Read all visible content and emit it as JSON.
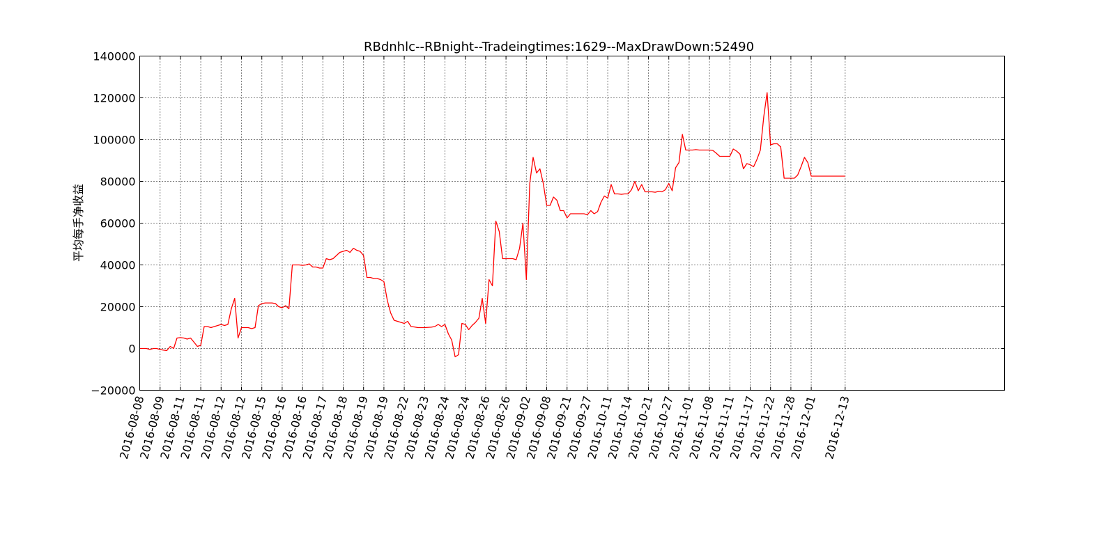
{
  "chart_data": {
    "type": "line",
    "title": "RBdnhlc--RBnight--Tradeingtimes:1629--MaxDrawDown:52490",
    "xlabel": "",
    "ylabel": "平均每手净收益",
    "ylim": [
      -20000,
      140000
    ],
    "yticks": [
      -20000,
      0,
      20000,
      40000,
      60000,
      80000,
      100000,
      120000,
      140000
    ],
    "ytick_labels": [
      "−20000",
      "0",
      "20000",
      "40000",
      "60000",
      "80000",
      "100000",
      "120000",
      "140000"
    ],
    "xlim": [
      0,
      255
    ],
    "xtick_positions": [
      0,
      6,
      12,
      18,
      24,
      30,
      36,
      42,
      48,
      54,
      60,
      66,
      72,
      78,
      84,
      90,
      96,
      102,
      108,
      114,
      120,
      126,
      132,
      138,
      144,
      150,
      156,
      162,
      168,
      174,
      180,
      186,
      192,
      198,
      208
    ],
    "xtick_labels": [
      "2016-08-08",
      "2016-08-09",
      "2016-08-11",
      "2016-08-11",
      "2016-08-12",
      "2016-08-12",
      "2016-08-15",
      "2016-08-16",
      "2016-08-16",
      "2016-08-17",
      "2016-08-18",
      "2016-08-19",
      "2016-08-19",
      "2016-08-22",
      "2016-08-23",
      "2016-08-24",
      "2016-08-24",
      "2016-08-26",
      "2016-08-26",
      "2016-09-02",
      "2016-09-08",
      "2016-09-21",
      "2016-09-27",
      "2016-10-11",
      "2016-10-14",
      "2016-10-21",
      "2016-10-27",
      "2016-11-01",
      "2016-11-08",
      "2016-11-11",
      "2016-11-17",
      "2016-11-22",
      "2016-11-28",
      "2016-12-01",
      "2016-12-13"
    ],
    "grid": true,
    "series": [
      {
        "name": "",
        "color": "#ff0000",
        "points": [
          [
            0,
            0
          ],
          [
            2,
            0
          ],
          [
            3,
            -500
          ],
          [
            4,
            0
          ],
          [
            5,
            0
          ],
          [
            6,
            -500
          ],
          [
            7,
            -800
          ],
          [
            8,
            -1000
          ],
          [
            9,
            1000
          ],
          [
            10,
            0
          ],
          [
            11,
            5000
          ],
          [
            12,
            5200
          ],
          [
            13,
            5000
          ],
          [
            14,
            4500
          ],
          [
            15,
            5000
          ],
          [
            16,
            3000
          ],
          [
            17,
            1000
          ],
          [
            18,
            1500
          ],
          [
            19,
            10500
          ],
          [
            20,
            10500
          ],
          [
            21,
            10000
          ],
          [
            22,
            10500
          ],
          [
            23,
            11000
          ],
          [
            24,
            11500
          ],
          [
            25,
            11000
          ],
          [
            26,
            11500
          ],
          [
            27,
            19000
          ],
          [
            28,
            24000
          ],
          [
            29,
            5000
          ],
          [
            30,
            10000
          ],
          [
            31,
            10000
          ],
          [
            32,
            10000
          ],
          [
            33,
            9500
          ],
          [
            34,
            10000
          ],
          [
            35,
            20500
          ],
          [
            36,
            21500
          ],
          [
            37,
            21800
          ],
          [
            38,
            21800
          ],
          [
            39,
            21800
          ],
          [
            40,
            21500
          ],
          [
            41,
            20000
          ],
          [
            42,
            19500
          ],
          [
            43,
            20500
          ],
          [
            44,
            19000
          ],
          [
            45,
            40000
          ],
          [
            46,
            40000
          ],
          [
            47,
            40000
          ],
          [
            48,
            39800
          ],
          [
            49,
            40000
          ],
          [
            50,
            40500
          ],
          [
            51,
            39000
          ],
          [
            52,
            39000
          ],
          [
            53,
            38500
          ],
          [
            54,
            38500
          ],
          [
            55,
            43000
          ],
          [
            56,
            42500
          ],
          [
            57,
            43000
          ],
          [
            58,
            44500
          ],
          [
            59,
            46000
          ],
          [
            60,
            46500
          ],
          [
            61,
            47000
          ],
          [
            62,
            46000
          ],
          [
            63,
            48000
          ],
          [
            64,
            47000
          ],
          [
            65,
            46500
          ],
          [
            66,
            44500
          ],
          [
            67,
            34000
          ],
          [
            68,
            34000
          ],
          [
            69,
            33500
          ],
          [
            70,
            33500
          ],
          [
            71,
            33000
          ],
          [
            72,
            32000
          ],
          [
            73,
            23000
          ],
          [
            74,
            17000
          ],
          [
            75,
            13500
          ],
          [
            76,
            13000
          ],
          [
            77,
            12500
          ],
          [
            78,
            12000
          ],
          [
            79,
            13000
          ],
          [
            80,
            10500
          ],
          [
            81,
            10300
          ],
          [
            82,
            10000
          ],
          [
            84,
            10000
          ],
          [
            86,
            10200
          ],
          [
            87,
            10500
          ],
          [
            88,
            11500
          ],
          [
            89,
            10500
          ],
          [
            90,
            11500
          ],
          [
            91,
            7000
          ],
          [
            92,
            4000
          ],
          [
            93,
            -4000
          ],
          [
            94,
            -3000
          ],
          [
            95,
            12000
          ],
          [
            96,
            11500
          ],
          [
            97,
            9000
          ],
          [
            98,
            11000
          ],
          [
            99,
            12500
          ],
          [
            100,
            14500
          ],
          [
            101,
            24000
          ],
          [
            102,
            12000
          ],
          [
            103,
            33000
          ],
          [
            104,
            30000
          ],
          [
            105,
            61000
          ],
          [
            106,
            56000
          ],
          [
            107,
            43000
          ],
          [
            108,
            43000
          ],
          [
            109,
            43000
          ],
          [
            110,
            43000
          ],
          [
            111,
            42500
          ],
          [
            112,
            48000
          ],
          [
            113,
            60000
          ],
          [
            114,
            33000
          ],
          [
            115,
            79000
          ],
          [
            116,
            91500
          ],
          [
            117,
            84000
          ],
          [
            118,
            86000
          ],
          [
            119,
            79000
          ],
          [
            120,
            68500
          ],
          [
            121,
            68500
          ],
          [
            122,
            72500
          ],
          [
            123,
            71000
          ],
          [
            124,
            66000
          ],
          [
            125,
            66000
          ],
          [
            126,
            62500
          ],
          [
            127,
            64500
          ],
          [
            130,
            64500
          ],
          [
            131,
            64500
          ],
          [
            132,
            64000
          ],
          [
            133,
            66000
          ],
          [
            134,
            64500
          ],
          [
            135,
            65500
          ],
          [
            136,
            70000
          ],
          [
            137,
            73000
          ],
          [
            138,
            72000
          ],
          [
            139,
            78500
          ],
          [
            140,
            74000
          ],
          [
            141,
            74000
          ],
          [
            142,
            73800
          ],
          [
            143,
            74000
          ],
          [
            144,
            74000
          ],
          [
            145,
            76000
          ],
          [
            146,
            80000
          ],
          [
            147,
            75500
          ],
          [
            148,
            78500
          ],
          [
            149,
            75000
          ],
          [
            150,
            75000
          ],
          [
            151,
            75000
          ],
          [
            152,
            74800
          ],
          [
            153,
            75200
          ],
          [
            154,
            75000
          ],
          [
            155,
            76000
          ],
          [
            156,
            79000
          ],
          [
            157,
            75500
          ],
          [
            158,
            86500
          ],
          [
            159,
            89000
          ],
          [
            160,
            102500
          ],
          [
            161,
            95000
          ],
          [
            162,
            95000
          ],
          [
            163,
            95000
          ],
          [
            164,
            95200
          ],
          [
            165,
            95000
          ],
          [
            166,
            95000
          ],
          [
            167,
            95000
          ],
          [
            168,
            95000
          ],
          [
            169,
            94800
          ],
          [
            170,
            93500
          ],
          [
            171,
            92000
          ],
          [
            172,
            92000
          ],
          [
            173,
            92000
          ],
          [
            174,
            92000
          ],
          [
            175,
            95500
          ],
          [
            176,
            94500
          ],
          [
            177,
            93000
          ],
          [
            178,
            86000
          ],
          [
            179,
            88500
          ],
          [
            180,
            88000
          ],
          [
            181,
            87000
          ],
          [
            182,
            90500
          ],
          [
            183,
            95000
          ],
          [
            184,
            111000
          ],
          [
            185,
            122500
          ],
          [
            186,
            97500
          ],
          [
            187,
            98000
          ],
          [
            188,
            98000
          ],
          [
            189,
            96500
          ],
          [
            190,
            81500
          ],
          [
            191,
            81500
          ],
          [
            192,
            81500
          ],
          [
            193,
            81500
          ],
          [
            194,
            83000
          ],
          [
            195,
            87000
          ],
          [
            196,
            91500
          ],
          [
            197,
            89000
          ],
          [
            198,
            82500
          ],
          [
            200,
            82500
          ],
          [
            208,
            82500
          ]
        ]
      }
    ]
  }
}
